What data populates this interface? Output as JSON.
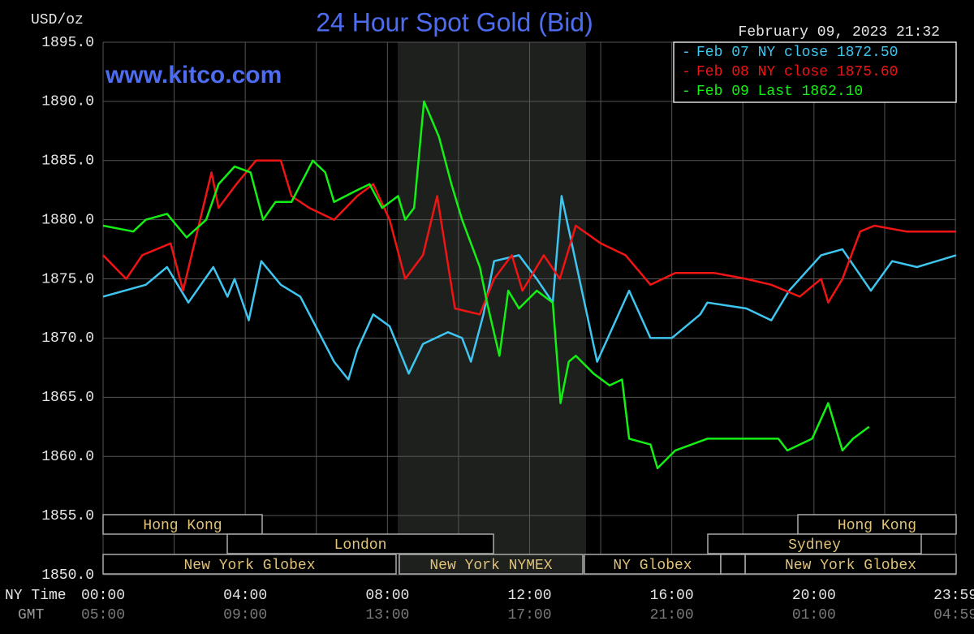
{
  "chart_data": {
    "type": "line",
    "title": "24 Hour Spot Gold (Bid)",
    "y_label": "USD/oz",
    "date": "February 09, 2023 21:32",
    "watermark": "www.kitco.com",
    "x_label": "NY Time",
    "x2_label": "GMT",
    "xlim": [
      0,
      24
    ],
    "xticks": [
      {
        "value": 0,
        "label": "00:00"
      },
      {
        "value": 4,
        "label": "04:00"
      },
      {
        "value": 8,
        "label": "08:00"
      },
      {
        "value": 12,
        "label": "12:00"
      },
      {
        "value": 16,
        "label": "16:00"
      },
      {
        "value": 20,
        "label": "20:00"
      },
      {
        "value": 23.98,
        "label": "23:59"
      }
    ],
    "x2ticks": [
      {
        "value": 0,
        "label": "05:00"
      },
      {
        "value": 4,
        "label": "09:00"
      },
      {
        "value": 8,
        "label": "13:00"
      },
      {
        "value": 12,
        "label": "17:00"
      },
      {
        "value": 16,
        "label": "21:00"
      },
      {
        "value": 20,
        "label": "01:00"
      },
      {
        "value": 23.98,
        "label": "04:59"
      }
    ],
    "ylim": [
      1850,
      1895
    ],
    "yticks": [
      {
        "value": 1850,
        "label": "1850.0"
      },
      {
        "value": 1855,
        "label": "1855.0"
      },
      {
        "value": 1860,
        "label": "1860.0"
      },
      {
        "value": 1865,
        "label": "1865.0"
      },
      {
        "value": 1870,
        "label": "1870.0"
      },
      {
        "value": 1875,
        "label": "1875.0"
      },
      {
        "value": 1880,
        "label": "1880.0"
      },
      {
        "value": 1885,
        "label": "1885.0"
      },
      {
        "value": 1890,
        "label": "1890.0"
      },
      {
        "value": 1895,
        "label": "1895.0"
      }
    ],
    "grid": true,
    "sessions": [
      "Hong Kong",
      "Hong Kong",
      "London",
      "Sydney",
      "New York Globex",
      "New York NYMEX",
      "NY Globex",
      "New York Globex"
    ],
    "series": [
      {
        "name": "Feb 07 NY close 1872.50",
        "color": "#3ec6f0",
        "x": [
          0,
          1.2,
          1.8,
          2.4,
          3.1,
          3.5,
          3.7,
          4.1,
          4.45,
          5,
          5.55,
          6.5,
          6.9,
          7.15,
          7.6,
          8.06,
          8.6,
          9,
          9.7,
          10.1,
          10.35,
          10.7,
          11,
          11.7,
          12.2,
          12.65,
          12.9,
          13.9,
          14.8,
          15.4,
          16,
          16.8,
          17,
          18.1,
          18.8,
          19.3,
          20.2,
          20.8,
          21.6,
          22.2,
          22.9,
          24
        ],
        "values": [
          1873.5,
          1874.5,
          1876,
          1873,
          1876,
          1873.5,
          1875,
          1871.5,
          1876.5,
          1874.5,
          1873.5,
          1868,
          1866.5,
          1869,
          1872,
          1871,
          1867,
          1869.5,
          1870.5,
          1870,
          1868,
          1872,
          1876.5,
          1877,
          1875,
          1873,
          1882,
          1868,
          1874,
          1870,
          1870,
          1872,
          1873,
          1872.5,
          1871.5,
          1874,
          1877,
          1877.5,
          1874,
          1876.5,
          1876,
          1877
        ]
      },
      {
        "name": "Feb 08 NY close 1875.60",
        "color": "#f01414",
        "x": [
          0,
          0.65,
          1.1,
          1.9,
          2.25,
          3.05,
          3.25,
          3.75,
          4.3,
          5,
          5.3,
          5.8,
          6.5,
          7.15,
          7.6,
          8.06,
          8.5,
          9,
          9.4,
          9.9,
          10.6,
          11,
          11.5,
          11.8,
          12.4,
          12.85,
          13.3,
          14,
          14.7,
          15.4,
          16.1,
          17.2,
          18.1,
          18.8,
          19.6,
          20.2,
          20.4,
          20.8,
          21.3,
          21.7,
          22.6,
          24
        ],
        "values": [
          1877,
          1875,
          1877,
          1878,
          1874,
          1884,
          1881,
          1883,
          1885,
          1885,
          1882,
          1881,
          1880,
          1882,
          1883,
          1880,
          1875,
          1877,
          1882,
          1872.5,
          1872,
          1875,
          1877,
          1874,
          1877,
          1875,
          1879.5,
          1878,
          1877,
          1874.5,
          1875.5,
          1875.5,
          1875,
          1874.5,
          1873.5,
          1875,
          1873,
          1875,
          1879,
          1879.5,
          1879,
          1879
        ]
      },
      {
        "name": "Feb 09 Last 1862.10",
        "color": "#14f014",
        "x": [
          0,
          0.85,
          1.2,
          1.8,
          2.35,
          2.9,
          3.25,
          3.7,
          4.15,
          4.5,
          4.85,
          5.3,
          5.9,
          6.25,
          6.5,
          7.15,
          7.5,
          7.85,
          8.3,
          8.5,
          8.75,
          9.03,
          9.45,
          9.8,
          10.1,
          10.6,
          10.8,
          11.15,
          11.4,
          11.7,
          12.2,
          12.65,
          12.87,
          13.1,
          13.3,
          13.8,
          14.25,
          14.6,
          14.8,
          15.4,
          15.6,
          16.1,
          17,
          18.1,
          19,
          19.25,
          19.95,
          20.4,
          20.8,
          21.1,
          21.55
        ],
        "values": [
          1879.5,
          1879,
          1880,
          1880.5,
          1878.5,
          1880,
          1883,
          1884.5,
          1884,
          1880,
          1881.5,
          1881.5,
          1885,
          1884,
          1881.5,
          1882.5,
          1883,
          1881,
          1882,
          1880,
          1881,
          1890,
          1887,
          1883,
          1880,
          1876,
          1873,
          1868.5,
          1874,
          1872.5,
          1874,
          1873,
          1864.5,
          1868,
          1868.5,
          1867,
          1866,
          1866.5,
          1861.5,
          1861,
          1859,
          1860.5,
          1861.5,
          1861.5,
          1861.5,
          1860.5,
          1861.5,
          1864.5,
          1860.5,
          1861.5,
          1862.5
        ]
      }
    ]
  }
}
